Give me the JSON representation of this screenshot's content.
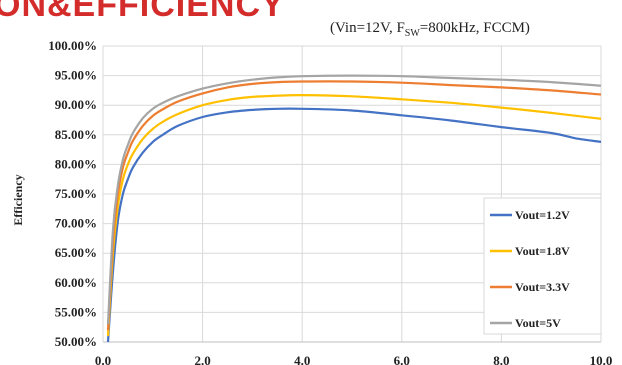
{
  "header": {
    "title_fragment": "ON&EFFICIENCY",
    "conditions_prefix": "(Vin=12V, F",
    "conditions_sub": "SW",
    "conditions_suffix": "=800kHz, FCCM)"
  },
  "colors": {
    "title": "#d42b2b",
    "grid": "#d9d9d9",
    "axis": "#bfbfbf"
  },
  "chart_data": {
    "type": "line",
    "title": "",
    "xlabel": "",
    "ylabel": "Efficiency",
    "xlim": [
      0,
      10
    ],
    "ylim": [
      50,
      100
    ],
    "x_ticks": [
      "0.0",
      "2.0",
      "4.0",
      "6.0",
      "8.0",
      "10.0"
    ],
    "y_ticks": [
      "50.00%",
      "55.00%",
      "60.00%",
      "65.00%",
      "70.00%",
      "75.00%",
      "80.00%",
      "85.00%",
      "90.00%",
      "95.00%",
      "100.00%"
    ],
    "x_tick_values": [
      0,
      2,
      4,
      6,
      8,
      10
    ],
    "y_tick_values": [
      50,
      55,
      60,
      65,
      70,
      75,
      80,
      85,
      90,
      95,
      100
    ],
    "grid": true,
    "legend_position": "bottom-right",
    "series": [
      {
        "name": "Vout=1.2V",
        "color": "#4472c4",
        "x": [
          0.1,
          0.2,
          0.3,
          0.4,
          0.5,
          0.6,
          0.8,
          1.0,
          1.2,
          1.5,
          2.0,
          2.5,
          3.0,
          3.5,
          4.0,
          5.0,
          6.0,
          7.0,
          8.0,
          9.0,
          9.5,
          10.0
        ],
        "y": [
          50.0,
          62.0,
          70.5,
          75.0,
          77.5,
          79.5,
          82.0,
          83.8,
          85.0,
          86.5,
          88.0,
          88.8,
          89.2,
          89.4,
          89.4,
          89.1,
          88.3,
          87.4,
          86.3,
          85.3,
          84.4,
          83.8
        ]
      },
      {
        "name": "Vout=1.8V",
        "color": "#ffc000",
        "x": [
          0.1,
          0.2,
          0.3,
          0.4,
          0.5,
          0.6,
          0.8,
          1.0,
          1.2,
          1.5,
          2.0,
          2.5,
          3.0,
          3.5,
          4.0,
          5.0,
          6.0,
          7.0,
          8.0,
          9.0,
          10.0
        ],
        "y": [
          51.0,
          65.0,
          73.0,
          77.5,
          80.0,
          81.8,
          84.3,
          86.0,
          87.2,
          88.5,
          90.0,
          90.9,
          91.4,
          91.6,
          91.7,
          91.5,
          91.0,
          90.4,
          89.6,
          88.7,
          87.7
        ]
      },
      {
        "name": "Vout=3.3V",
        "color": "#ed7d31",
        "x": [
          0.1,
          0.2,
          0.3,
          0.4,
          0.5,
          0.6,
          0.8,
          1.0,
          1.2,
          1.5,
          2.0,
          2.5,
          3.0,
          3.5,
          4.0,
          5.0,
          6.0,
          7.0,
          8.0,
          9.0,
          10.0
        ],
        "y": [
          52.0,
          67.0,
          75.0,
          79.5,
          82.0,
          84.0,
          86.5,
          88.2,
          89.3,
          90.6,
          92.0,
          93.0,
          93.6,
          93.9,
          94.0,
          94.0,
          93.8,
          93.4,
          93.0,
          92.5,
          91.8
        ]
      },
      {
        "name": "Vout=5V",
        "color": "#a5a5a5",
        "x": [
          0.1,
          0.2,
          0.3,
          0.4,
          0.5,
          0.6,
          0.8,
          1.0,
          1.2,
          1.5,
          2.0,
          2.5,
          3.0,
          3.5,
          4.0,
          5.0,
          6.0,
          7.0,
          8.0,
          9.0,
          10.0
        ],
        "y": [
          53.0,
          69.0,
          76.5,
          80.8,
          83.3,
          85.3,
          87.8,
          89.4,
          90.4,
          91.5,
          92.8,
          93.7,
          94.3,
          94.7,
          94.9,
          95.0,
          94.9,
          94.6,
          94.3,
          93.9,
          93.3
        ]
      }
    ]
  }
}
